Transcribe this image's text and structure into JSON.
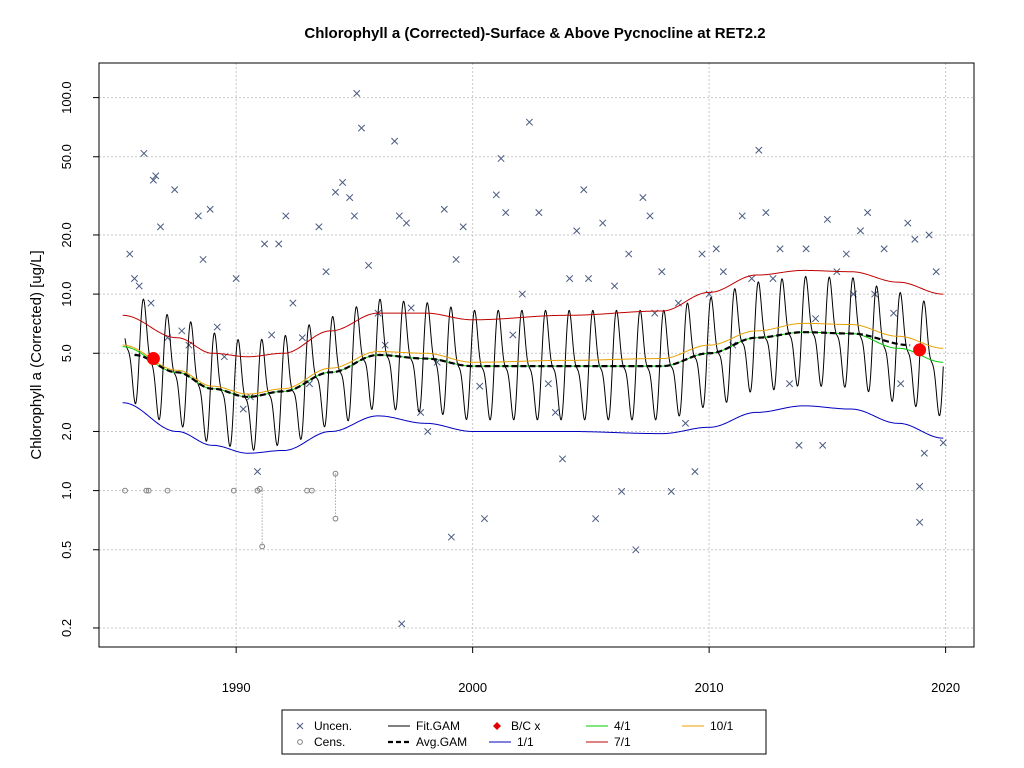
{
  "chart_data": {
    "type": "line",
    "title": "Chlorophyll a (Corrected)-Surface & Above Pycnocline at RET2.2",
    "xlabel": "",
    "ylabel": "Chlorophyll a (Corrected) [ug/L]",
    "y_scale": "log",
    "xlim": [
      1984.2,
      2021.2
    ],
    "ylim": [
      0.16,
      150
    ],
    "x_ticks": [
      1990,
      2000,
      2010,
      2020
    ],
    "x_tick_labels": [
      "1990",
      "2000",
      "2010",
      "2020"
    ],
    "y_ticks": [
      0.2,
      0.5,
      1.0,
      2.0,
      5.0,
      10.0,
      20.0,
      50.0,
      100.0
    ],
    "y_tick_labels": [
      "0.2",
      "0.5",
      "1.0",
      "2.0",
      "5.0",
      "10.0",
      "20.0",
      "50.0",
      "100.0"
    ],
    "grid": true,
    "legend_position": "bottom",
    "legend": [
      {
        "label": "Uncen.",
        "kind": "cross",
        "color": "#4a5a80"
      },
      {
        "label": "Cens.",
        "kind": "circle",
        "color": "#808080"
      },
      {
        "label": "Fit.GAM",
        "kind": "line",
        "color": "#000000"
      },
      {
        "label": "Avg.GAM",
        "kind": "dash",
        "color": "#000000"
      },
      {
        "label": "B/C x",
        "kind": "diamond",
        "color": "#e00000"
      },
      {
        "label": "1/1",
        "kind": "line",
        "color": "#0000c0"
      },
      {
        "label": "4/1",
        "kind": "line",
        "color": "#00cc00"
      },
      {
        "label": "7/1",
        "kind": "line",
        "color": "#c00000"
      },
      {
        "label": "10/1",
        "kind": "line",
        "color": "#e8a000"
      }
    ],
    "series": [
      {
        "name": "1/1",
        "color": "#0000c0",
        "x": [
          1985.2,
          1987.5,
          1989,
          1990.5,
          1992,
          1994,
          1996,
          1998,
          2000,
          2004,
          2008,
          2010,
          2012,
          2014,
          2016,
          2018,
          2019.9
        ],
        "y": [
          2.8,
          2.0,
          1.7,
          1.55,
          1.6,
          2.0,
          2.4,
          2.2,
          2.0,
          2.0,
          1.95,
          2.1,
          2.5,
          2.7,
          2.6,
          2.2,
          1.85
        ]
      },
      {
        "name": "4/1",
        "color": "#00cc00",
        "x": [
          1985.2,
          1987.5,
          1989,
          1990.5,
          1992,
          1994,
          1996,
          1998,
          2000,
          2004,
          2008,
          2010,
          2012,
          2014,
          2016,
          2018,
          2019.9
        ],
        "y": [
          5.4,
          4.0,
          3.3,
          3.0,
          3.2,
          4.0,
          4.9,
          4.7,
          4.3,
          4.3,
          4.3,
          5.0,
          6.0,
          6.4,
          6.3,
          5.3,
          4.5
        ]
      },
      {
        "name": "7/1",
        "color": "#c00000",
        "x": [
          1985.2,
          1987.5,
          1989,
          1990.5,
          1992,
          1994,
          1996,
          1998,
          2000,
          2004,
          2008,
          2010,
          2012,
          2014,
          2016,
          2018,
          2019.9
        ],
        "y": [
          7.8,
          6.0,
          5.0,
          4.8,
          5.0,
          6.5,
          8.0,
          8.0,
          7.4,
          7.8,
          8.2,
          10.2,
          12.5,
          13.2,
          13.0,
          11.5,
          10.0
        ]
      },
      {
        "name": "10/1",
        "color": "#e8a000",
        "x": [
          1985.2,
          1987.5,
          1989,
          1990.5,
          1992,
          1994,
          1996,
          1998,
          2000,
          2004,
          2008,
          2010,
          2012,
          2014,
          2016,
          2018,
          2019.9
        ],
        "y": [
          5.5,
          4.1,
          3.4,
          3.1,
          3.3,
          4.2,
          5.1,
          5.0,
          4.5,
          4.6,
          4.7,
          5.5,
          6.5,
          7.1,
          7.0,
          6.1,
          5.3
        ]
      },
      {
        "name": "Avg.GAM",
        "color": "#000000",
        "x": [
          1985.7,
          1987.5,
          1989,
          1990.5,
          1992,
          1994,
          1996,
          1998,
          2000,
          2004,
          2008,
          2010,
          2012,
          2014,
          2016,
          2018.5
        ],
        "y": [
          4.9,
          4.0,
          3.3,
          3.0,
          3.2,
          4.0,
          4.9,
          4.7,
          4.3,
          4.3,
          4.3,
          5.0,
          6.0,
          6.4,
          6.3,
          5.5
        ]
      }
    ],
    "fit_gam": {
      "x_range": [
        1985.3,
        2019.9
      ],
      "cycles_per_year": 1,
      "log_amplitude": 0.52,
      "center": "4/1"
    },
    "bc_points": [
      {
        "x": 1986.5,
        "y": 4.7
      },
      {
        "x": 2018.9,
        "y": 5.2
      }
    ],
    "uncensored_points": [
      [
        1985.5,
        16
      ],
      [
        1985.7,
        12
      ],
      [
        1985.9,
        11
      ],
      [
        1986.1,
        52
      ],
      [
        1986.4,
        9
      ],
      [
        1986.5,
        38
      ],
      [
        1986.6,
        40
      ],
      [
        1986.8,
        22
      ],
      [
        1987.1,
        6
      ],
      [
        1987.4,
        34
      ],
      [
        1987.7,
        6.5
      ],
      [
        1988.0,
        5.5
      ],
      [
        1988.4,
        25
      ],
      [
        1988.6,
        15
      ],
      [
        1988.9,
        27
      ],
      [
        1989.2,
        6.8
      ],
      [
        1989.5,
        4.8
      ],
      [
        1990.0,
        12
      ],
      [
        1990.3,
        2.6
      ],
      [
        1990.6,
        3.0
      ],
      [
        1990.9,
        1.25
      ],
      [
        1991.2,
        18
      ],
      [
        1991.5,
        6.2
      ],
      [
        1991.8,
        18
      ],
      [
        1992.1,
        25
      ],
      [
        1992.4,
        9
      ],
      [
        1992.8,
        6
      ],
      [
        1993.1,
        3.5
      ],
      [
        1993.5,
        22
      ],
      [
        1993.8,
        13
      ],
      [
        1994.2,
        33
      ],
      [
        1994.5,
        37
      ],
      [
        1994.8,
        31
      ],
      [
        1995.0,
        25
      ],
      [
        1995.1,
        105
      ],
      [
        1995.3,
        70
      ],
      [
        1995.6,
        14
      ],
      [
        1996.0,
        8
      ],
      [
        1996.3,
        5.5
      ],
      [
        1996.7,
        60
      ],
      [
        1996.9,
        25
      ],
      [
        1997.2,
        23
      ],
      [
        1997.4,
        8.5
      ],
      [
        1997.0,
        0.21
      ],
      [
        1997.8,
        2.5
      ],
      [
        1998.1,
        2.0
      ],
      [
        1998.5,
        4.5
      ],
      [
        1998.8,
        27
      ],
      [
        1999.1,
        0.58
      ],
      [
        1999.3,
        15
      ],
      [
        1999.6,
        22
      ],
      [
        2000.3,
        3.4
      ],
      [
        2000.5,
        0.72
      ],
      [
        2001.0,
        32
      ],
      [
        2001.2,
        49
      ],
      [
        2001.4,
        26
      ],
      [
        2001.7,
        6.2
      ],
      [
        2002.1,
        10
      ],
      [
        2002.4,
        75
      ],
      [
        2002.8,
        26
      ],
      [
        2003.2,
        3.5
      ],
      [
        2003.5,
        2.5
      ],
      [
        2003.8,
        1.45
      ],
      [
        2004.1,
        12
      ],
      [
        2004.4,
        21
      ],
      [
        2004.7,
        34
      ],
      [
        2004.9,
        12
      ],
      [
        2005.2,
        0.72
      ],
      [
        2005.5,
        23
      ],
      [
        2006.0,
        11
      ],
      [
        2006.3,
        0.99
      ],
      [
        2006.6,
        16
      ],
      [
        2006.9,
        0.5
      ],
      [
        2007.2,
        31
      ],
      [
        2007.5,
        25
      ],
      [
        2007.7,
        8
      ],
      [
        2008.0,
        13
      ],
      [
        2008.4,
        0.99
      ],
      [
        2008.7,
        9
      ],
      [
        2009.0,
        2.2
      ],
      [
        2009.4,
        1.25
      ],
      [
        2009.7,
        16
      ],
      [
        2010.0,
        10
      ],
      [
        2010.3,
        17
      ],
      [
        2010.6,
        13
      ],
      [
        2011.0,
        5.5
      ],
      [
        2011.4,
        25
      ],
      [
        2011.8,
        12
      ],
      [
        2012.1,
        54
      ],
      [
        2012.4,
        26
      ],
      [
        2012.7,
        12
      ],
      [
        2013.0,
        17
      ],
      [
        2013.4,
        3.5
      ],
      [
        2013.8,
        1.7
      ],
      [
        2014.1,
        17
      ],
      [
        2014.5,
        7.5
      ],
      [
        2014.8,
        1.7
      ],
      [
        2015.0,
        24
      ],
      [
        2015.4,
        13
      ],
      [
        2015.8,
        16
      ],
      [
        2016.1,
        10
      ],
      [
        2016.4,
        21
      ],
      [
        2016.7,
        26
      ],
      [
        2017.0,
        10
      ],
      [
        2017.4,
        17
      ],
      [
        2017.8,
        8
      ],
      [
        2018.1,
        3.5
      ],
      [
        2018.4,
        23
      ],
      [
        2018.7,
        19
      ],
      [
        2018.9,
        1.05
      ],
      [
        2019.1,
        1.55
      ],
      [
        2019.3,
        20
      ],
      [
        2019.6,
        13
      ],
      [
        2019.9,
        1.75
      ],
      [
        2018.9,
        0.69
      ]
    ],
    "censored_points": [
      [
        1985.3,
        1.0
      ],
      [
        1986.2,
        1.0
      ],
      [
        1986.3,
        1.0
      ],
      [
        1987.1,
        1.0
      ],
      [
        1989.9,
        1.0
      ],
      [
        1990.9,
        1.0
      ],
      [
        1991.0,
        1.02
      ],
      [
        1991.1,
        0.52
      ],
      [
        1993.0,
        1.0
      ],
      [
        1993.2,
        1.0
      ],
      [
        1994.2,
        0.72
      ],
      [
        1994.2,
        1.22
      ]
    ]
  }
}
